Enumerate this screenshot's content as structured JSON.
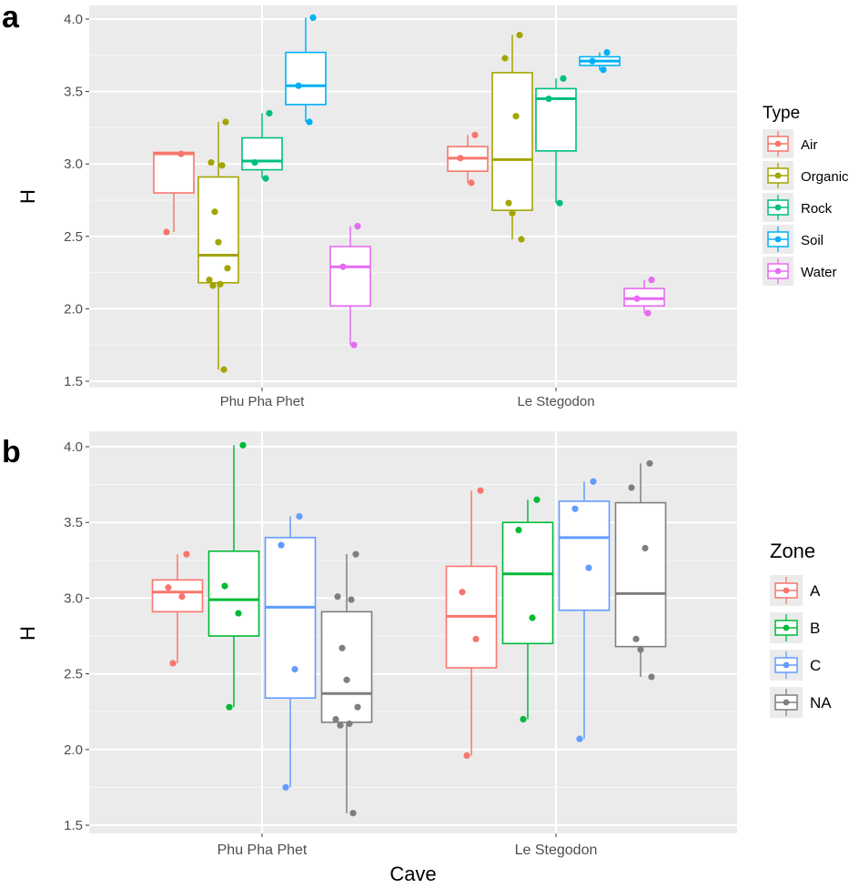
{
  "chart_data": [
    {
      "panel": "a",
      "type": "box",
      "xlabel": "",
      "ylabel": "H",
      "ylim": [
        1.45,
        4.05
      ],
      "yticks": [
        "1.5",
        "2.0",
        "2.5",
        "3.0",
        "3.5",
        "4.0"
      ],
      "categories": [
        "Phu Pha Phet",
        "Le Stegodon"
      ],
      "legend": {
        "title": "Type",
        "position": "right"
      },
      "series": [
        {
          "name": "Air",
          "color": "#F8766D",
          "boxes": [
            {
              "category": "Phu Pha Phet",
              "min": 2.53,
              "q1": 2.8,
              "median": 3.07,
              "q3": 3.08,
              "max": 3.08,
              "points": [
                3.07,
                2.53
              ]
            },
            {
              "category": "Le Stegodon",
              "min": 2.87,
              "q1": 2.95,
              "median": 3.04,
              "q3": 3.12,
              "max": 3.2,
              "points": [
                3.2,
                3.04,
                2.87
              ]
            }
          ]
        },
        {
          "name": "Organic",
          "color": "#A3A500",
          "boxes": [
            {
              "category": "Phu Pha Phet",
              "min": 1.58,
              "q1": 2.18,
              "median": 2.37,
              "q3": 2.91,
              "max": 3.29,
              "points": [
                3.29,
                3.01,
                2.99,
                2.67,
                2.46,
                2.28,
                2.2,
                2.17,
                2.16,
                1.58
              ]
            },
            {
              "category": "Le Stegodon",
              "min": 2.48,
              "q1": 2.68,
              "median": 3.03,
              "q3": 3.63,
              "max": 3.89,
              "points": [
                3.89,
                3.73,
                3.33,
                2.73,
                2.66,
                2.48
              ]
            }
          ]
        },
        {
          "name": "Rock",
          "color": "#00BF7D",
          "boxes": [
            {
              "category": "Phu Pha Phet",
              "min": 2.9,
              "q1": 2.96,
              "median": 3.02,
              "q3": 3.18,
              "max": 3.35,
              "points": [
                3.35,
                3.01,
                2.9
              ]
            },
            {
              "category": "Le Stegodon",
              "min": 2.73,
              "q1": 3.09,
              "median": 3.45,
              "q3": 3.52,
              "max": 3.59,
              "points": [
                3.59,
                3.45,
                2.73
              ]
            }
          ]
        },
        {
          "name": "Soil",
          "color": "#00B0F6",
          "boxes": [
            {
              "category": "Phu Pha Phet",
              "min": 3.29,
              "q1": 3.41,
              "median": 3.54,
              "q3": 3.77,
              "max": 4.01,
              "points": [
                4.01,
                3.54,
                3.29
              ]
            },
            {
              "category": "Le Stegodon",
              "min": 3.65,
              "q1": 3.68,
              "median": 3.71,
              "q3": 3.74,
              "max": 3.77,
              "points": [
                3.77,
                3.71,
                3.65
              ]
            }
          ]
        },
        {
          "name": "Water",
          "color": "#E76BF3",
          "boxes": [
            {
              "category": "Phu Pha Phet",
              "min": 1.75,
              "q1": 2.02,
              "median": 2.29,
              "q3": 2.43,
              "max": 2.57,
              "points": [
                2.57,
                2.29,
                1.75
              ]
            },
            {
              "category": "Le Stegodon",
              "min": 1.97,
              "q1": 2.02,
              "median": 2.07,
              "q3": 2.14,
              "max": 2.2,
              "points": [
                2.2,
                2.07,
                1.97
              ]
            }
          ]
        }
      ]
    },
    {
      "panel": "b",
      "type": "box",
      "xlabel": "Cave",
      "ylabel": "H",
      "ylim": [
        1.45,
        4.05
      ],
      "yticks": [
        "1.5",
        "2.0",
        "2.5",
        "3.0",
        "3.5",
        "4.0"
      ],
      "categories": [
        "Phu Pha Phet",
        "Le Stegodon"
      ],
      "legend": {
        "title": "Zone",
        "position": "right"
      },
      "series": [
        {
          "name": "A",
          "color": "#F8766D",
          "boxes": [
            {
              "category": "Phu Pha Phet",
              "min": 2.57,
              "q1": 2.91,
              "median": 3.04,
              "q3": 3.12,
              "max": 3.29,
              "points": [
                3.29,
                3.07,
                3.01,
                2.57
              ]
            },
            {
              "category": "Le Stegodon",
              "min": 1.96,
              "q1": 2.54,
              "median": 2.88,
              "q3": 3.21,
              "max": 3.71,
              "points": [
                3.71,
                3.04,
                2.73,
                1.96
              ]
            }
          ]
        },
        {
          "name": "B",
          "color": "#00BA38",
          "boxes": [
            {
              "category": "Phu Pha Phet",
              "min": 2.28,
              "q1": 2.75,
              "median": 2.99,
              "q3": 3.31,
              "max": 4.01,
              "points": [
                4.01,
                3.08,
                2.9,
                2.28
              ]
            },
            {
              "category": "Le Stegodon",
              "min": 2.2,
              "q1": 2.7,
              "median": 3.16,
              "q3": 3.5,
              "max": 3.65,
              "points": [
                3.65,
                3.45,
                2.87,
                2.2
              ]
            }
          ]
        },
        {
          "name": "C",
          "color": "#619CFF",
          "boxes": [
            {
              "category": "Phu Pha Phet",
              "min": 1.75,
              "q1": 2.34,
              "median": 2.94,
              "q3": 3.4,
              "max": 3.54,
              "points": [
                3.54,
                3.35,
                2.53,
                1.75
              ]
            },
            {
              "category": "Le Stegodon",
              "min": 2.07,
              "q1": 2.92,
              "median": 3.4,
              "q3": 3.64,
              "max": 3.77,
              "points": [
                3.77,
                3.59,
                3.2,
                2.07
              ]
            }
          ]
        },
        {
          "name": "NA",
          "color": "#7F7F7F",
          "boxes": [
            {
              "category": "Phu Pha Phet",
              "min": 1.58,
              "q1": 2.18,
              "median": 2.37,
              "q3": 2.91,
              "max": 3.29,
              "points": [
                3.29,
                3.01,
                2.99,
                2.67,
                2.46,
                2.28,
                2.2,
                2.17,
                2.16,
                1.58
              ]
            },
            {
              "category": "Le Stegodon",
              "min": 2.48,
              "q1": 2.68,
              "median": 3.03,
              "q3": 3.63,
              "max": 3.89,
              "points": [
                3.89,
                3.73,
                3.33,
                2.73,
                2.66,
                2.48
              ]
            }
          ]
        }
      ]
    }
  ]
}
